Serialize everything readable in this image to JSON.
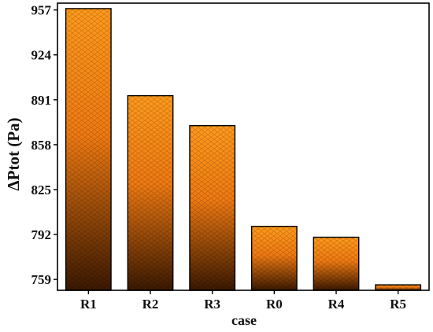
{
  "chart_data": {
    "type": "bar",
    "title": "",
    "xlabel": "case",
    "ylabel": "ΔPtot (Pa)",
    "categories": [
      "R1",
      "R2",
      "R3",
      "R0",
      "R4",
      "R5"
    ],
    "values": [
      958,
      894,
      872,
      798,
      790,
      755
    ],
    "ylim": [
      751,
      962
    ],
    "yticks": [
      759,
      792,
      825,
      858,
      891,
      924,
      957
    ],
    "grid": false,
    "legend": "none",
    "colors": {
      "bar_top": "#ff9a1c",
      "bar_mid": "#f07a12",
      "bar_bottom": "#3a1800",
      "bar_outline": "#000000",
      "axis": "#000000"
    },
    "pattern": "brick-hatch"
  }
}
